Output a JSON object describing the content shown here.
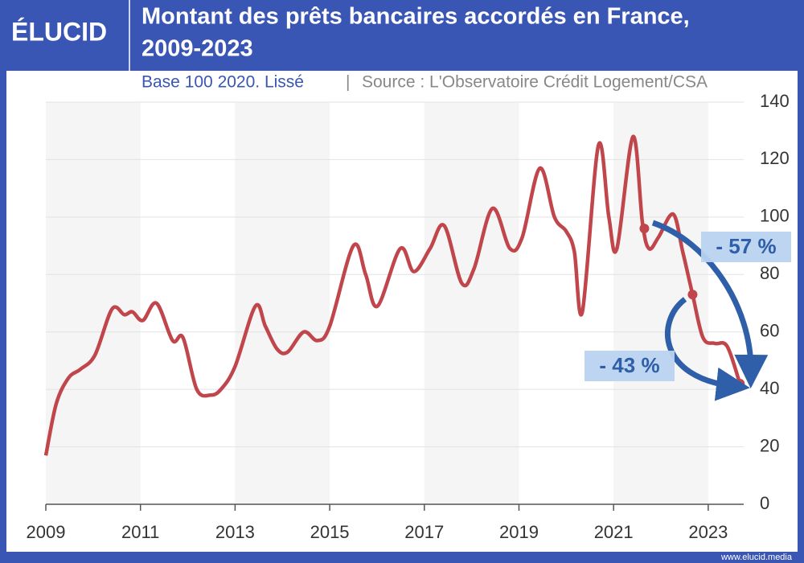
{
  "logo": "ÉLUCID",
  "footer": "www.elucid.media",
  "chart_data": {
    "type": "line",
    "title": [
      "Montant des prêts bancaires accordés en France,",
      "2009-2023"
    ],
    "subtitle": "Base 100 2020. Lissé",
    "separator": "|",
    "source": "Source : L'Observatoire Crédit Logement/CSA",
    "x": [
      2009.0,
      2009.22,
      2009.48,
      2009.73,
      2010.04,
      2010.4,
      2010.66,
      2010.83,
      2011.05,
      2011.34,
      2011.68,
      2011.9,
      2012.19,
      2012.48,
      2012.7,
      2013.0,
      2013.43,
      2013.64,
      2013.89,
      2014.11,
      2014.45,
      2014.74,
      2015.0,
      2015.5,
      2015.76,
      2016.01,
      2016.49,
      2016.78,
      2017.12,
      2017.42,
      2017.79,
      2018.05,
      2018.44,
      2018.81,
      2019.07,
      2019.44,
      2019.75,
      2020.0,
      2020.17,
      2020.34,
      2020.68,
      2020.9,
      2021.07,
      2021.41,
      2021.61,
      2021.75,
      2021.95,
      2022.26,
      2022.46,
      2022.67,
      2022.89,
      2023.14,
      2023.4,
      2023.67
    ],
    "series": [
      {
        "color": "#c0464b",
        "values": [
          17,
          35,
          44,
          47,
          52,
          68,
          66,
          67,
          64,
          70,
          57,
          58,
          40,
          38,
          40,
          48,
          69,
          62,
          54,
          53,
          60,
          57,
          62,
          90,
          80,
          69,
          89,
          81,
          89,
          97,
          77,
          82,
          103,
          89,
          93,
          117,
          100,
          95,
          88,
          67,
          125,
          100,
          89,
          128,
          98,
          89,
          93,
          101,
          88,
          73,
          58,
          56,
          55,
          42
        ]
      }
    ],
    "markers": {
      "x": [
        2021.65,
        2022.67,
        2023.67
      ],
      "values": [
        96,
        73,
        42
      ]
    },
    "annotations": [
      "- 57 %",
      "- 43 %"
    ],
    "xlim": [
      2009,
      2023.75
    ],
    "xticks": [
      2009,
      2011,
      2013,
      2015,
      2017,
      2019,
      2021,
      2023
    ],
    "ylim": [
      0,
      140
    ],
    "yticks": [
      0,
      20,
      40,
      60,
      80,
      100,
      120,
      140
    ],
    "grid": true,
    "bands": true
  }
}
